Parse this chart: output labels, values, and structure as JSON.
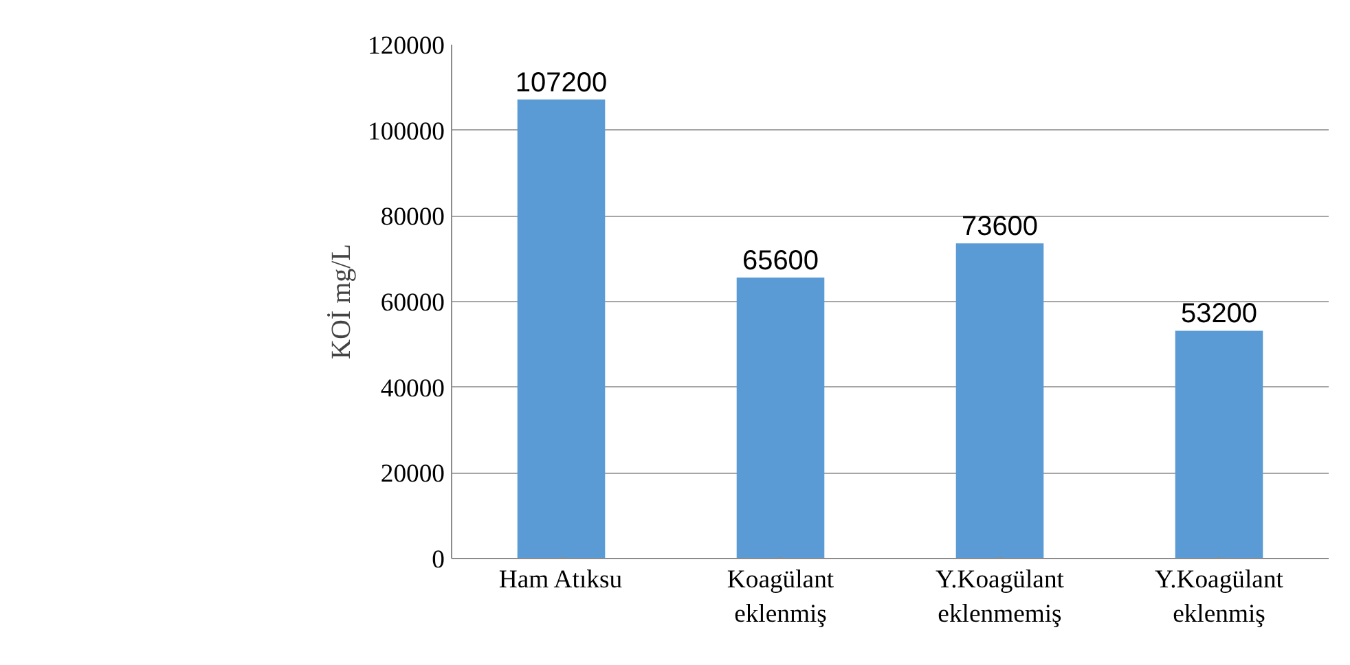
{
  "chart_data": {
    "type": "bar",
    "ylabel": "KOİ mg/L",
    "categories": [
      "Ham Atıksu",
      "Koagülant\neklenmiş",
      "Y.Koagülant\neklenmemiş",
      "Y.Koagülant\neklenmiş"
    ],
    "values": [
      107200,
      65600,
      73600,
      53200
    ],
    "color": "#5b9bd5",
    "ylim": [
      0,
      120000
    ],
    "yticks": [
      0,
      20000,
      40000,
      60000,
      80000,
      100000,
      120000
    ],
    "grid": "y",
    "data_labels": true
  }
}
